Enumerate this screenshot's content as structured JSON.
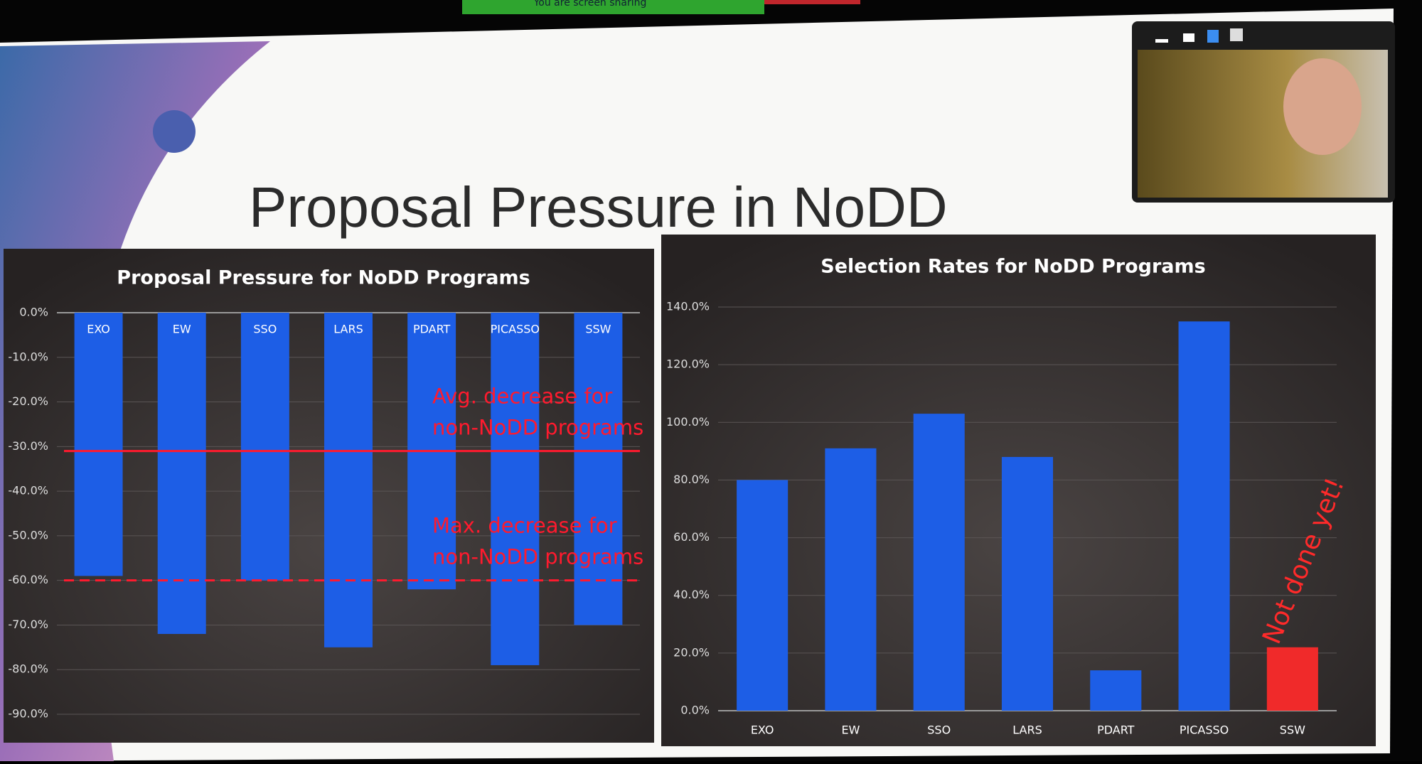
{
  "status_banner": "You are screen sharing",
  "slide_title": "Proposal Pressure in NoDD",
  "chart_data": [
    {
      "type": "bar",
      "title": "Proposal Pressure for NoDD Programs",
      "categories": [
        "EXO",
        "EW",
        "SSO",
        "LARS",
        "PDART",
        "PICASSO",
        "SSW"
      ],
      "values": [
        -59,
        -72,
        -60,
        -75,
        -62,
        -79,
        -70
      ],
      "color": "#1d5ee6",
      "ylim": [
        -90,
        0
      ],
      "yticks": [
        {
          "value": -90,
          "label": "-90.0%"
        },
        {
          "value": -80,
          "label": "-80.0%"
        },
        {
          "value": -70,
          "label": "-70.0%"
        },
        {
          "value": -60,
          "label": "-60.0%"
        },
        {
          "value": -50,
          "label": "-50.0%"
        },
        {
          "value": -40,
          "label": "-40.0%"
        },
        {
          "value": -30,
          "label": "-30.0%"
        },
        {
          "value": -20,
          "label": "-20.0%"
        },
        {
          "value": -10,
          "label": "-10.0%"
        },
        {
          "value": 0,
          "label": "0.0%"
        }
      ],
      "grid": true,
      "category_labels_inside": true,
      "reference_lines": [
        {
          "value": -31,
          "style": "solid",
          "color": "#ff1a2e",
          "label_lines": [
            "Avg. decrease for",
            "non-NoDD programs"
          ]
        },
        {
          "value": -60,
          "style": "dashed",
          "color": "#ff1a2e",
          "label_lines": [
            "Max. decrease for",
            "non-NoDD programs"
          ]
        }
      ]
    },
    {
      "type": "bar",
      "title": "Selection Rates for NoDD Programs",
      "categories": [
        "EXO",
        "EW",
        "SSO",
        "LARS",
        "PDART",
        "PICASSO",
        "SSW"
      ],
      "values": [
        80,
        91,
        103,
        88,
        14,
        135,
        22
      ],
      "colors": [
        "#1d5ee6",
        "#1d5ee6",
        "#1d5ee6",
        "#1d5ee6",
        "#1d5ee6",
        "#1d5ee6",
        "#f02a2a"
      ],
      "ylim": [
        0,
        140
      ],
      "yticks": [
        {
          "value": 0,
          "label": "0.0%"
        },
        {
          "value": 20,
          "label": "20.0%"
        },
        {
          "value": 40,
          "label": "40.0%"
        },
        {
          "value": 60,
          "label": "60.0%"
        },
        {
          "value": 80,
          "label": "80.0%"
        },
        {
          "value": 100,
          "label": "100.0%"
        },
        {
          "value": 120,
          "label": "120.0%"
        },
        {
          "value": 140,
          "label": "140.0%"
        }
      ],
      "grid": true,
      "annotation": "Not done yet!"
    }
  ]
}
